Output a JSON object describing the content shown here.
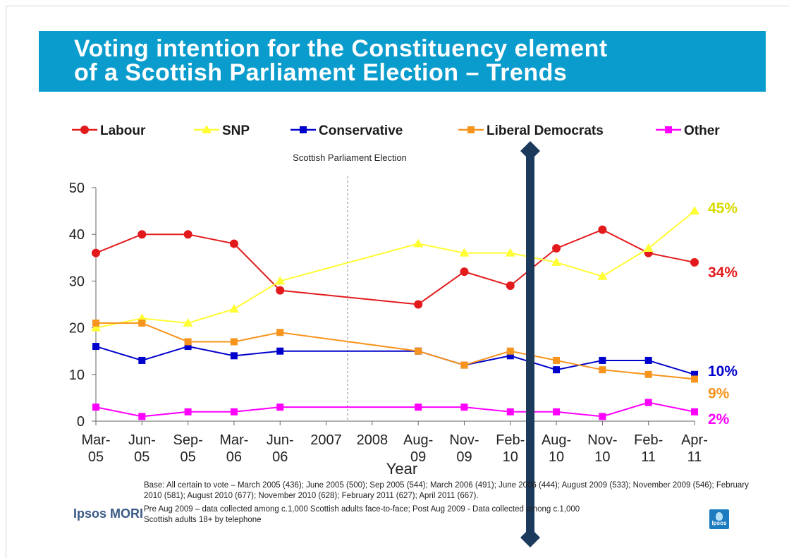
{
  "title": {
    "line1": "Voting intention for the Constituency element",
    "line2": "of a Scottish Parliament Election – Trends"
  },
  "chart_data": {
    "type": "line",
    "title": "Voting intention for the Constituency element of a Scottish Parliament Election – Trends",
    "xlabel": "Year",
    "ylabel": "",
    "ylim": [
      0,
      50
    ],
    "yticks": [
      0,
      10,
      20,
      30,
      40,
      50
    ],
    "grid": false,
    "legend_position": "top",
    "categories": [
      "Mar-05",
      "Jun-05",
      "Sep-05",
      "Mar-06",
      "Jun-06",
      "2007",
      "2008",
      "Aug-09",
      "Nov-09",
      "Feb-10",
      "Aug-10",
      "Nov-10",
      "Feb-11",
      "Apr-11"
    ],
    "category_lines": [
      [
        "Mar-",
        "05"
      ],
      [
        "Jun-",
        "05"
      ],
      [
        "Sep-",
        "05"
      ],
      [
        "Mar-",
        "06"
      ],
      [
        "Jun-",
        "06"
      ],
      [
        "2007",
        ""
      ],
      [
        "2008",
        ""
      ],
      [
        "Aug-",
        "09"
      ],
      [
        "Nov-",
        "09"
      ],
      [
        "Feb-",
        "10"
      ],
      [
        "Aug-",
        "10"
      ],
      [
        "Nov-",
        "10"
      ],
      [
        "Feb-",
        "11"
      ],
      [
        "Apr-",
        "11"
      ]
    ],
    "series": [
      {
        "name": "Labour",
        "color": "#e31a1c",
        "marker": "circle",
        "values": [
          36,
          40,
          40,
          38,
          28,
          null,
          null,
          25,
          32,
          29,
          37,
          41,
          36,
          34
        ],
        "end_label": "34%"
      },
      {
        "name": "SNP",
        "color": "#ffff33",
        "marker": "triangle",
        "values": [
          20,
          22,
          21,
          24,
          30,
          null,
          null,
          38,
          36,
          36,
          34,
          31,
          37,
          45
        ],
        "end_label": "45%"
      },
      {
        "name": "Conservative",
        "color": "#0000cc",
        "marker": "square",
        "values": [
          16,
          13,
          16,
          14,
          15,
          null,
          null,
          15,
          12,
          14,
          11,
          13,
          13,
          10
        ],
        "end_label": "10%"
      },
      {
        "name": "Liberal Democrats",
        "color": "#f7941d",
        "marker": "square",
        "values": [
          21,
          21,
          17,
          17,
          19,
          null,
          null,
          15,
          12,
          15,
          13,
          11,
          10,
          9
        ],
        "end_label": "9%"
      },
      {
        "name": "Other",
        "color": "#ff00ff",
        "marker": "square",
        "values": [
          3,
          1,
          2,
          2,
          3,
          null,
          null,
          3,
          3,
          2,
          2,
          1,
          4,
          2
        ],
        "end_label": "2%"
      }
    ],
    "end_label_colors": {
      "Labour": "#e31a1c",
      "SNP": "#d9d900",
      "Conservative": "#0000cc",
      "Liberal Democrats": "#f7941d",
      "Other": "#ff00ff"
    },
    "annotations": {
      "election_label": "Scottish Parliament Election",
      "election_marker": "dashed vertical line between Jun-06 and 2007"
    }
  },
  "footnotes": {
    "base": "Base: All certain to vote – March 2005 (436); June 2005 (500); Sep 2005 (544); March 2006 (491); June 2006 (444); August 2009 (533); November 2009 (546); February 2010 (581); August 2010 (677); November 2010 (628); February 2011 (627); April 2011 (667).",
    "method": "Pre Aug 2009 – data collected among c.1,000 Scottish adults face-to-face; Post Aug 2009 - Data collected among c.1,000 Scottish adults 18+ by telephone"
  },
  "logos": {
    "left": "Ipsos MORI",
    "right": "Ipsos"
  },
  "overlay_bar_color": "#1b3a5c"
}
